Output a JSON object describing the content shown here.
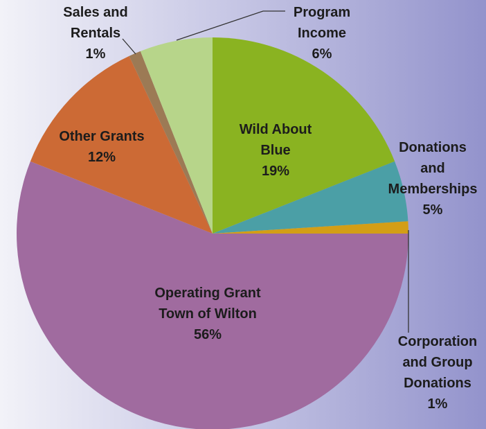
{
  "chart_data": {
    "type": "pie",
    "slices": [
      {
        "name": "Wild About Blue",
        "value": 19,
        "value_label": "19%",
        "color": "#8ab321"
      },
      {
        "name": "Donations and Memberships",
        "value": 5,
        "value_label": "5%",
        "color": "#4b9fa6"
      },
      {
        "name": "Corporation and Group Donations",
        "value": 1,
        "value_label": "1%",
        "color": "#d39e16"
      },
      {
        "name": "Operating Grant Town of Wilton",
        "value": 56,
        "value_label": "56%",
        "color": "#a06b9f"
      },
      {
        "name": "Other Grants",
        "value": 12,
        "value_label": "12%",
        "color": "#cc6a35"
      },
      {
        "name": "Sales and Rentals",
        "value": 1,
        "value_label": "1%",
        "color": "#9c7a55"
      },
      {
        "name": "Program Income",
        "value": 6,
        "value_label": "6%",
        "color": "#b7d58a"
      }
    ]
  }
}
